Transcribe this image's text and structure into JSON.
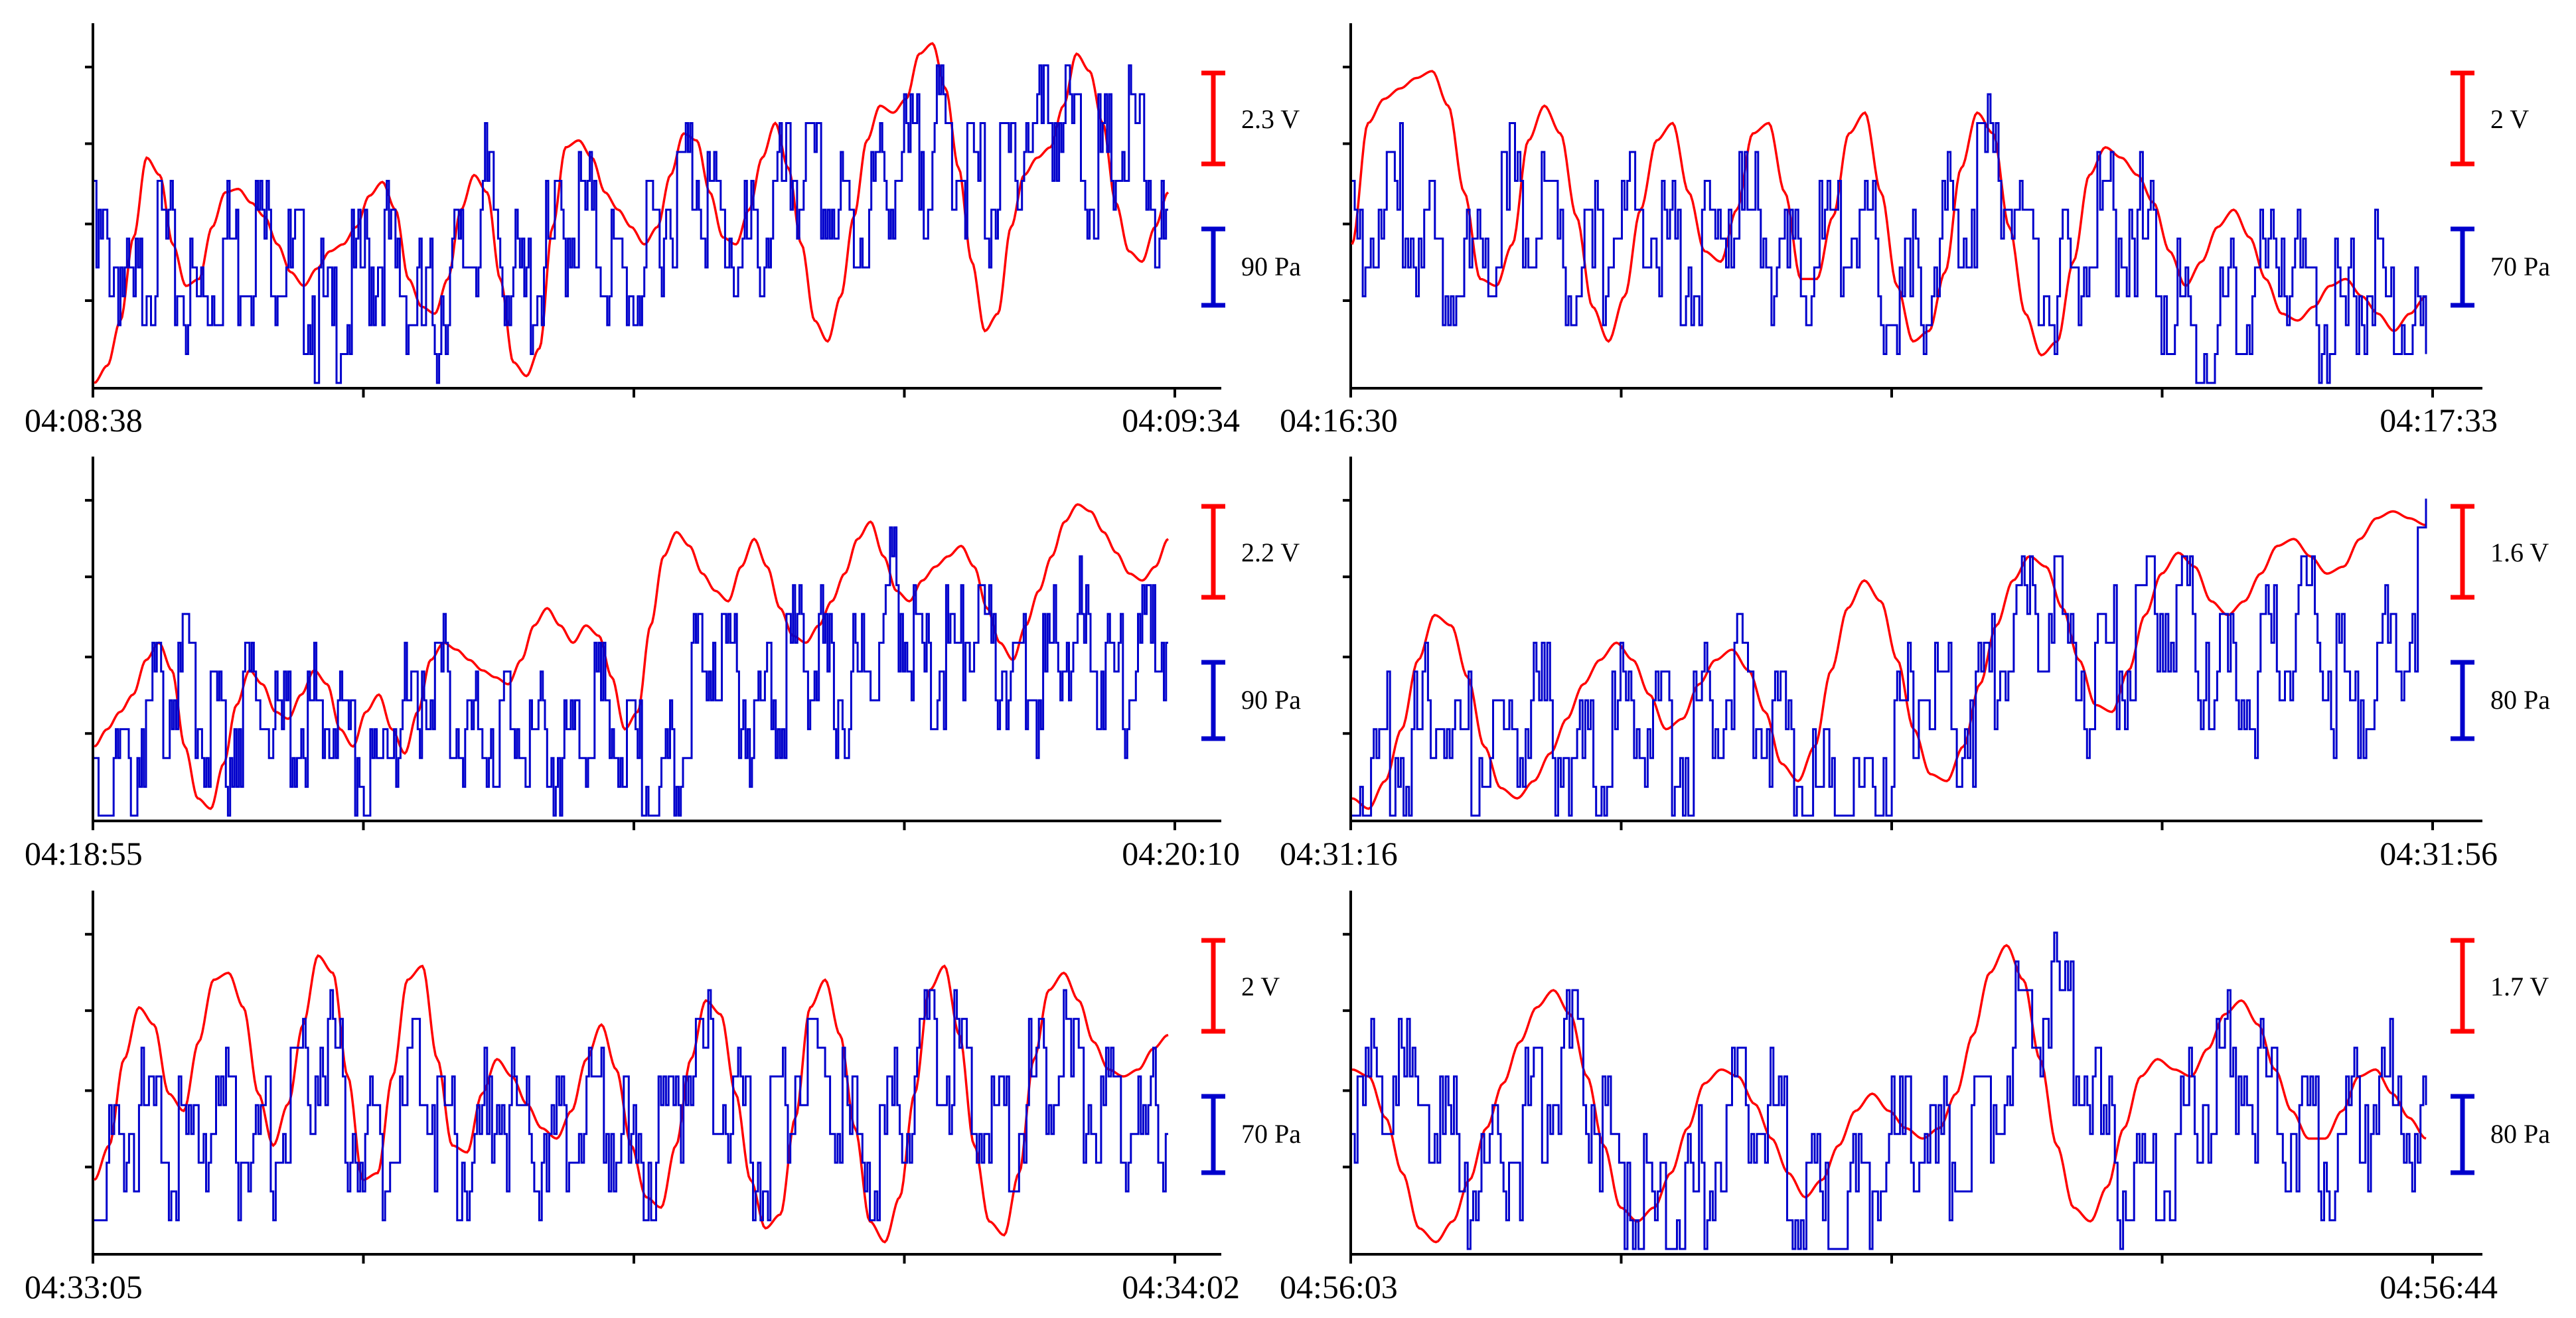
{
  "colors": {
    "voltage": "#ff0000",
    "pressure": "#0000cc",
    "axis": "#000000"
  },
  "chart_data": [
    {
      "type": "line",
      "start_label": "04:08:38",
      "end_label": "04:09:34",
      "scale_bars": {
        "voltage": "2.3 V",
        "pressure": "90 Pa"
      },
      "grid": false,
      "series": [
        {
          "name": "voltage",
          "values": [
            0.0,
            0.05,
            0.18,
            0.42,
            0.65,
            0.6,
            0.4,
            0.28,
            0.3,
            0.45,
            0.55,
            0.56,
            0.52,
            0.48,
            0.4,
            0.32,
            0.28,
            0.33,
            0.38,
            0.4,
            0.45,
            0.54,
            0.58,
            0.5,
            0.3,
            0.22,
            0.2,
            0.3,
            0.5,
            0.6,
            0.55,
            0.3,
            0.06,
            0.02,
            0.1,
            0.45,
            0.68,
            0.7,
            0.65,
            0.55,
            0.5,
            0.45,
            0.4,
            0.45,
            0.6,
            0.72,
            0.7,
            0.55,
            0.42,
            0.4,
            0.5,
            0.65,
            0.75,
            0.62,
            0.4,
            0.18,
            0.12,
            0.25,
            0.48,
            0.7,
            0.8,
            0.78,
            0.82,
            0.95,
            0.98,
            0.85,
            0.62,
            0.35,
            0.15,
            0.2,
            0.45,
            0.6,
            0.65,
            0.68,
            0.8,
            0.95,
            0.9,
            0.75,
            0.52,
            0.38,
            0.35,
            0.45,
            0.55
          ]
        },
        {
          "name": "pressure",
          "values": [
            0.45,
            0.5,
            0.42,
            0.3,
            0.48,
            0.52,
            0.44,
            0.38,
            0.35,
            0.42,
            0.5,
            0.46,
            0.52,
            0.55,
            0.5,
            0.45,
            0.38,
            0.32,
            0.25,
            0.3,
            0.4,
            0.46,
            0.5,
            0.44,
            0.35,
            0.3,
            0.3,
            0.38,
            0.46,
            0.55,
            0.62,
            0.52,
            0.4,
            0.35,
            0.42,
            0.5,
            0.58,
            0.6,
            0.56,
            0.48,
            0.4,
            0.38,
            0.45,
            0.55,
            0.62,
            0.7,
            0.72,
            0.65,
            0.55,
            0.48,
            0.46,
            0.52,
            0.6,
            0.68,
            0.72,
            0.7,
            0.62,
            0.56,
            0.54,
            0.6,
            0.68,
            0.7,
            0.72,
            0.75,
            0.8,
            0.85,
            0.78,
            0.7,
            0.65,
            0.68,
            0.75,
            0.82,
            0.88,
            0.9,
            0.85,
            0.78,
            0.72,
            0.7,
            0.74,
            0.8,
            0.75,
            0.6,
            0.45
          ]
        }
      ]
    },
    {
      "type": "line",
      "start_label": "04:16:30",
      "end_label": "04:17:33",
      "scale_bars": {
        "voltage": "2 V",
        "pressure": "70 Pa"
      },
      "grid": false,
      "series": [
        {
          "name": "voltage",
          "values": [
            0.4,
            0.75,
            0.82,
            0.85,
            0.88,
            0.9,
            0.8,
            0.55,
            0.3,
            0.28,
            0.4,
            0.7,
            0.8,
            0.72,
            0.48,
            0.22,
            0.12,
            0.25,
            0.5,
            0.7,
            0.75,
            0.55,
            0.38,
            0.35,
            0.5,
            0.72,
            0.75,
            0.55,
            0.3,
            0.3,
            0.48,
            0.72,
            0.78,
            0.55,
            0.28,
            0.12,
            0.15,
            0.32,
            0.62,
            0.78,
            0.72,
            0.45,
            0.2,
            0.08,
            0.12,
            0.35,
            0.6,
            0.68,
            0.65,
            0.6,
            0.52,
            0.38,
            0.28,
            0.35,
            0.45,
            0.5,
            0.42,
            0.3,
            0.2,
            0.18,
            0.22,
            0.28,
            0.3,
            0.25,
            0.2,
            0.15,
            0.2,
            0.25
          ]
        },
        {
          "name": "pressure",
          "values": [
            0.45,
            0.55,
            0.6,
            0.62,
            0.58,
            0.5,
            0.42,
            0.4,
            0.48,
            0.55,
            0.62,
            0.65,
            0.58,
            0.48,
            0.42,
            0.45,
            0.52,
            0.58,
            0.62,
            0.55,
            0.48,
            0.45,
            0.5,
            0.58,
            0.62,
            0.6,
            0.52,
            0.45,
            0.42,
            0.48,
            0.55,
            0.6,
            0.55,
            0.45,
            0.38,
            0.4,
            0.48,
            0.55,
            0.62,
            0.68,
            0.72,
            0.65,
            0.52,
            0.42,
            0.38,
            0.42,
            0.5,
            0.58,
            0.62,
            0.55,
            0.45,
            0.35,
            0.25,
            0.2,
            0.25,
            0.32,
            0.38,
            0.45,
            0.5,
            0.45,
            0.35,
            0.28,
            0.3,
            0.38,
            0.42,
            0.35,
            0.28,
            0.22
          ]
        }
      ]
    },
    {
      "type": "line",
      "start_label": "04:18:55",
      "end_label": "04:20:10",
      "scale_bars": {
        "voltage": "2.2 V",
        "pressure": "90 Pa"
      },
      "grid": false,
      "series": [
        {
          "name": "voltage",
          "values": [
            0.2,
            0.25,
            0.3,
            0.35,
            0.45,
            0.5,
            0.42,
            0.2,
            0.05,
            0.02,
            0.15,
            0.32,
            0.42,
            0.38,
            0.3,
            0.28,
            0.35,
            0.42,
            0.38,
            0.25,
            0.2,
            0.3,
            0.35,
            0.25,
            0.18,
            0.3,
            0.45,
            0.5,
            0.48,
            0.45,
            0.42,
            0.4,
            0.38,
            0.45,
            0.55,
            0.6,
            0.55,
            0.5,
            0.55,
            0.52,
            0.4,
            0.25,
            0.3,
            0.55,
            0.75,
            0.82,
            0.78,
            0.7,
            0.65,
            0.62,
            0.72,
            0.8,
            0.72,
            0.6,
            0.52,
            0.5,
            0.55,
            0.62,
            0.7,
            0.8,
            0.85,
            0.75,
            0.65,
            0.62,
            0.68,
            0.72,
            0.75,
            0.78,
            0.72,
            0.6,
            0.5,
            0.45,
            0.55,
            0.65,
            0.75,
            0.85,
            0.9,
            0.88,
            0.82,
            0.76,
            0.7,
            0.68,
            0.72,
            0.8
          ]
        },
        {
          "name": "pressure",
          "values": [
            0.15,
            0.2,
            0.25,
            0.3,
            0.35,
            0.42,
            0.5,
            0.55,
            0.45,
            0.35,
            0.3,
            0.38,
            0.45,
            0.42,
            0.35,
            0.3,
            0.35,
            0.42,
            0.4,
            0.35,
            0.28,
            0.22,
            0.25,
            0.35,
            0.42,
            0.48,
            0.5,
            0.45,
            0.38,
            0.32,
            0.3,
            0.35,
            0.38,
            0.4,
            0.35,
            0.28,
            0.25,
            0.3,
            0.38,
            0.45,
            0.4,
            0.32,
            0.25,
            0.18,
            0.2,
            0.3,
            0.42,
            0.52,
            0.6,
            0.55,
            0.45,
            0.38,
            0.42,
            0.5,
            0.55,
            0.6,
            0.58,
            0.5,
            0.45,
            0.5,
            0.58,
            0.68,
            0.72,
            0.65,
            0.55,
            0.5,
            0.55,
            0.62,
            0.65,
            0.6,
            0.55,
            0.5,
            0.48,
            0.5,
            0.55,
            0.6,
            0.62,
            0.58,
            0.5,
            0.45,
            0.48,
            0.55,
            0.62,
            0.65
          ]
        }
      ]
    },
    {
      "type": "line",
      "start_label": "04:31:16",
      "end_label": "04:31:56",
      "scale_bars": {
        "voltage": "1.6 V",
        "pressure": "80 Pa"
      },
      "grid": false,
      "series": [
        {
          "name": "voltage",
          "values": [
            0.05,
            0.02,
            0.1,
            0.25,
            0.45,
            0.58,
            0.55,
            0.4,
            0.2,
            0.08,
            0.05,
            0.1,
            0.18,
            0.28,
            0.38,
            0.45,
            0.5,
            0.45,
            0.35,
            0.25,
            0.28,
            0.38,
            0.45,
            0.48,
            0.42,
            0.3,
            0.15,
            0.1,
            0.2,
            0.42,
            0.6,
            0.68,
            0.62,
            0.45,
            0.25,
            0.12,
            0.1,
            0.2,
            0.38,
            0.55,
            0.68,
            0.75,
            0.72,
            0.6,
            0.45,
            0.32,
            0.3,
            0.42,
            0.58,
            0.7,
            0.76,
            0.72,
            0.62,
            0.58,
            0.62,
            0.7,
            0.78,
            0.8,
            0.75,
            0.7,
            0.72,
            0.8,
            0.86,
            0.88,
            0.86,
            0.84
          ]
        },
        {
          "name": "pressure",
          "values": [
            0.15,
            0.25,
            0.3,
            0.28,
            0.35,
            0.42,
            0.4,
            0.3,
            0.25,
            0.3,
            0.4,
            0.45,
            0.38,
            0.28,
            0.22,
            0.28,
            0.38,
            0.45,
            0.42,
            0.35,
            0.3,
            0.35,
            0.42,
            0.48,
            0.5,
            0.45,
            0.38,
            0.3,
            0.22,
            0.15,
            0.1,
            0.12,
            0.2,
            0.3,
            0.4,
            0.45,
            0.42,
            0.38,
            0.42,
            0.5,
            0.58,
            0.65,
            0.7,
            0.68,
            0.6,
            0.52,
            0.48,
            0.55,
            0.62,
            0.7,
            0.72,
            0.68,
            0.62,
            0.55,
            0.5,
            0.5,
            0.55,
            0.6,
            0.65,
            0.62,
            0.55,
            0.48,
            0.42,
            0.5,
            0.6,
            0.7,
            0.82
          ]
        }
      ]
    },
    {
      "type": "line",
      "start_label": "04:33:05",
      "end_label": "04:34:02",
      "scale_bars": {
        "voltage": "2 V",
        "pressure": "70 Pa"
      },
      "grid": false,
      "series": [
        {
          "name": "voltage",
          "values": [
            0.2,
            0.3,
            0.55,
            0.7,
            0.65,
            0.45,
            0.4,
            0.6,
            0.78,
            0.8,
            0.7,
            0.45,
            0.3,
            0.42,
            0.65,
            0.85,
            0.8,
            0.5,
            0.2,
            0.22,
            0.5,
            0.78,
            0.82,
            0.55,
            0.3,
            0.28,
            0.45,
            0.55,
            0.5,
            0.42,
            0.35,
            0.32,
            0.4,
            0.55,
            0.65,
            0.52,
            0.3,
            0.15,
            0.12,
            0.3,
            0.55,
            0.72,
            0.68,
            0.45,
            0.2,
            0.06,
            0.1,
            0.38,
            0.7,
            0.78,
            0.62,
            0.35,
            0.08,
            0.02,
            0.15,
            0.45,
            0.75,
            0.82,
            0.62,
            0.3,
            0.08,
            0.04,
            0.22,
            0.55,
            0.75,
            0.8,
            0.72,
            0.6,
            0.52,
            0.5,
            0.52,
            0.58,
            0.62
          ]
        },
        {
          "name": "pressure",
          "values": [
            0.2,
            0.35,
            0.45,
            0.52,
            0.48,
            0.4,
            0.38,
            0.45,
            0.52,
            0.5,
            0.42,
            0.35,
            0.4,
            0.5,
            0.6,
            0.68,
            0.62,
            0.5,
            0.4,
            0.35,
            0.42,
            0.55,
            0.6,
            0.52,
            0.42,
            0.38,
            0.45,
            0.52,
            0.5,
            0.45,
            0.42,
            0.45,
            0.5,
            0.55,
            0.5,
            0.42,
            0.35,
            0.32,
            0.4,
            0.52,
            0.62,
            0.65,
            0.58,
            0.48,
            0.4,
            0.42,
            0.5,
            0.6,
            0.65,
            0.6,
            0.5,
            0.42,
            0.38,
            0.42,
            0.52,
            0.62,
            0.7,
            0.72,
            0.65,
            0.55,
            0.45,
            0.42,
            0.5,
            0.58,
            0.65,
            0.62,
            0.58,
            0.55,
            0.52,
            0.5,
            0.48,
            0.46,
            0.44
          ]
        }
      ]
    },
    {
      "type": "line",
      "start_label": "04:56:03",
      "end_label": "04:56:44",
      "scale_bars": {
        "voltage": "1.7 V",
        "pressure": "80 Pa"
      },
      "grid": false,
      "series": [
        {
          "name": "voltage",
          "values": [
            0.52,
            0.5,
            0.38,
            0.22,
            0.06,
            0.02,
            0.08,
            0.2,
            0.35,
            0.48,
            0.6,
            0.7,
            0.75,
            0.68,
            0.5,
            0.3,
            0.12,
            0.08,
            0.12,
            0.22,
            0.35,
            0.48,
            0.52,
            0.5,
            0.42,
            0.32,
            0.22,
            0.15,
            0.2,
            0.3,
            0.4,
            0.45,
            0.4,
            0.35,
            0.32,
            0.35,
            0.45,
            0.62,
            0.8,
            0.88,
            0.78,
            0.55,
            0.3,
            0.12,
            0.08,
            0.18,
            0.35,
            0.5,
            0.55,
            0.52,
            0.5,
            0.58,
            0.68,
            0.72,
            0.65,
            0.52,
            0.4,
            0.32,
            0.32,
            0.4,
            0.5,
            0.52,
            0.45,
            0.38,
            0.32
          ]
        },
        {
          "name": "pressure",
          "values": [
            0.5,
            0.55,
            0.6,
            0.62,
            0.58,
            0.5,
            0.42,
            0.35,
            0.3,
            0.35,
            0.42,
            0.5,
            0.58,
            0.65,
            0.6,
            0.5,
            0.4,
            0.3,
            0.2,
            0.15,
            0.2,
            0.3,
            0.42,
            0.5,
            0.52,
            0.48,
            0.4,
            0.3,
            0.22,
            0.18,
            0.2,
            0.28,
            0.35,
            0.42,
            0.45,
            0.4,
            0.38,
            0.42,
            0.52,
            0.62,
            0.72,
            0.8,
            0.85,
            0.78,
            0.65,
            0.5,
            0.38,
            0.28,
            0.25,
            0.3,
            0.4,
            0.5,
            0.58,
            0.62,
            0.6,
            0.55,
            0.5,
            0.45,
            0.4,
            0.38,
            0.42,
            0.48,
            0.55,
            0.52,
            0.45,
            0.4
          ]
        }
      ]
    }
  ]
}
